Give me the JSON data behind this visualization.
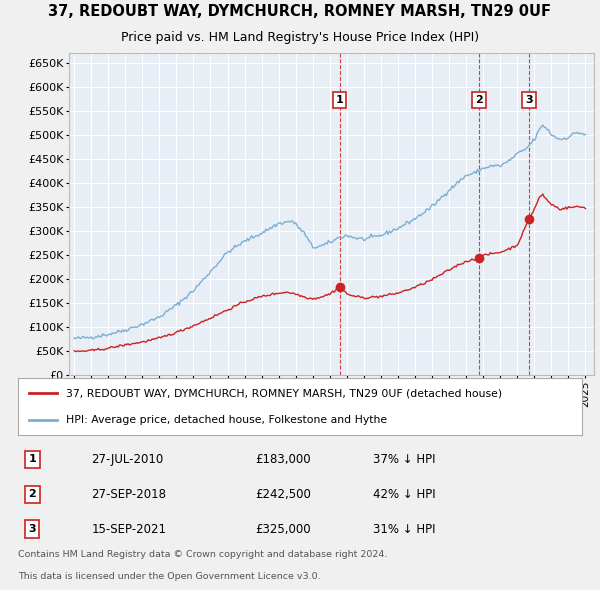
{
  "title": "37, REDOUBT WAY, DYMCHURCH, ROMNEY MARSH, TN29 0UF",
  "subtitle": "Price paid vs. HM Land Registry's House Price Index (HPI)",
  "ylim": [
    0,
    670000
  ],
  "yticks": [
    0,
    50000,
    100000,
    150000,
    200000,
    250000,
    300000,
    350000,
    400000,
    450000,
    500000,
    550000,
    600000,
    650000
  ],
  "ytick_labels": [
    "£0",
    "£50K",
    "£100K",
    "£150K",
    "£200K",
    "£250K",
    "£300K",
    "£350K",
    "£400K",
    "£450K",
    "£500K",
    "£550K",
    "£600K",
    "£650K"
  ],
  "hpi_color": "#7ab0d4",
  "price_color": "#cc2222",
  "bg_color": "#f0f0f0",
  "plot_bg": "#e8eef5",
  "grid_color": "#ffffff",
  "sales": [
    {
      "num": 1,
      "date_str": "27-JUL-2010",
      "date_x": 2010.57,
      "price": 183000,
      "label": "1",
      "pct": "37% ↓ HPI"
    },
    {
      "num": 2,
      "date_str": "27-SEP-2018",
      "date_x": 2018.74,
      "price": 242500,
      "label": "2",
      "pct": "42% ↓ HPI"
    },
    {
      "num": 3,
      "date_str": "15-SEP-2021",
      "date_x": 2021.71,
      "price": 325000,
      "label": "3",
      "pct": "31% ↓ HPI"
    }
  ],
  "legend_line1": "37, REDOUBT WAY, DYMCHURCH, ROMNEY MARSH, TN29 0UF (detached house)",
  "legend_line2": "HPI: Average price, detached house, Folkestone and Hythe",
  "footer1": "Contains HM Land Registry data © Crown copyright and database right 2024.",
  "footer2": "This data is licensed under the Open Government Licence v3.0.",
  "xmin": 1994.7,
  "xmax": 2025.5,
  "hpi_anchors_x": [
    1995.0,
    1996.0,
    1997.0,
    1998.0,
    1999.0,
    2000.0,
    2001.0,
    2002.0,
    2003.0,
    2004.0,
    2005.0,
    2006.0,
    2007.0,
    2007.8,
    2008.5,
    2009.0,
    2009.5,
    2010.0,
    2010.5,
    2011.0,
    2011.5,
    2012.0,
    2013.0,
    2014.0,
    2015.0,
    2016.0,
    2017.0,
    2017.5,
    2018.0,
    2018.5,
    2019.0,
    2019.5,
    2020.0,
    2020.5,
    2021.0,
    2021.5,
    2022.0,
    2022.3,
    2022.5,
    2022.8,
    2023.0,
    2023.5,
    2024.0,
    2024.5,
    2025.0
  ],
  "hpi_anchors_y": [
    75000,
    78000,
    84000,
    93000,
    105000,
    120000,
    145000,
    175000,
    215000,
    255000,
    278000,
    295000,
    315000,
    320000,
    295000,
    265000,
    268000,
    275000,
    285000,
    290000,
    285000,
    282000,
    290000,
    305000,
    325000,
    350000,
    385000,
    400000,
    415000,
    420000,
    430000,
    435000,
    435000,
    445000,
    460000,
    470000,
    490000,
    510000,
    520000,
    510000,
    500000,
    490000,
    495000,
    505000,
    500000
  ],
  "price_anchors_x": [
    1995.0,
    1996.0,
    1997.0,
    1998.0,
    1999.0,
    2000.0,
    2001.0,
    2002.0,
    2003.0,
    2004.0,
    2005.0,
    2006.0,
    2007.0,
    2007.5,
    2008.0,
    2008.5,
    2009.0,
    2009.5,
    2010.0,
    2010.57,
    2010.8,
    2011.0,
    2011.5,
    2012.0,
    2013.0,
    2014.0,
    2015.0,
    2016.0,
    2017.0,
    2017.5,
    2018.0,
    2018.74,
    2019.0,
    2019.5,
    2020.0,
    2020.5,
    2021.0,
    2021.71,
    2022.0,
    2022.3,
    2022.5,
    2022.7,
    2023.0,
    2023.5,
    2024.0,
    2024.5,
    2025.0
  ],
  "price_anchors_y": [
    48000,
    50000,
    55000,
    62000,
    68000,
    76000,
    88000,
    102000,
    118000,
    135000,
    152000,
    163000,
    170000,
    172000,
    168000,
    162000,
    158000,
    162000,
    168000,
    183000,
    176000,
    168000,
    163000,
    160000,
    163000,
    170000,
    182000,
    198000,
    218000,
    228000,
    236000,
    242500,
    248000,
    252000,
    255000,
    262000,
    270000,
    325000,
    345000,
    370000,
    375000,
    365000,
    355000,
    345000,
    348000,
    350000,
    348000
  ]
}
